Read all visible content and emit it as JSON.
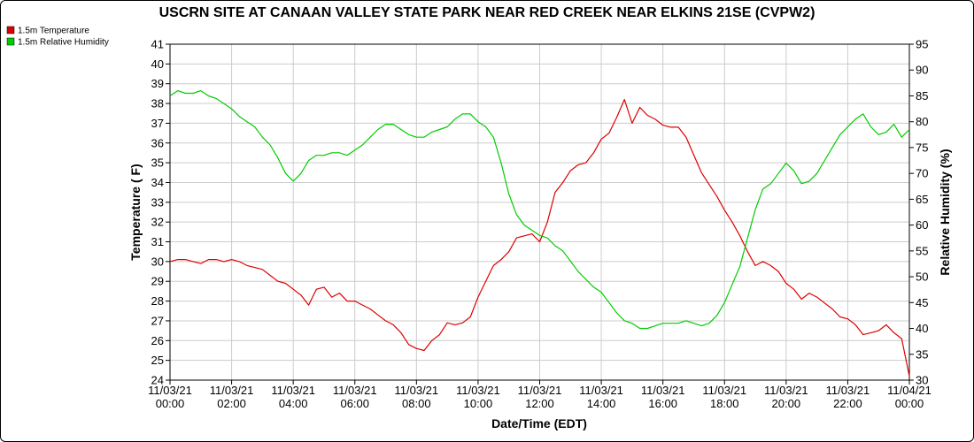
{
  "chart_data": {
    "type": "line",
    "title": "USCRN SITE AT CANAAN VALLEY STATE PARK NEAR RED CREEK NEAR ELKINS 21SE (CVPW2)",
    "xlabel": "Date/Time (EDT)",
    "ylabel_left": "Temperature ( F)",
    "ylabel_right": "Relative Humidity (%)",
    "ylim_left": [
      24,
      41
    ],
    "ylim_right": [
      30,
      95
    ],
    "xlim_hours": [
      0,
      24
    ],
    "grid": true,
    "legend_position": "top-left",
    "x_ticks": [
      {
        "hour": 0,
        "date": "11/03/21",
        "time": "00:00"
      },
      {
        "hour": 2,
        "date": "11/03/21",
        "time": "02:00"
      },
      {
        "hour": 4,
        "date": "11/03/21",
        "time": "04:00"
      },
      {
        "hour": 6,
        "date": "11/03/21",
        "time": "06:00"
      },
      {
        "hour": 8,
        "date": "11/03/21",
        "time": "08:00"
      },
      {
        "hour": 10,
        "date": "11/03/21",
        "time": "10:00"
      },
      {
        "hour": 12,
        "date": "11/03/21",
        "time": "12:00"
      },
      {
        "hour": 14,
        "date": "11/03/21",
        "time": "14:00"
      },
      {
        "hour": 16,
        "date": "11/03/21",
        "time": "16:00"
      },
      {
        "hour": 18,
        "date": "11/03/21",
        "time": "18:00"
      },
      {
        "hour": 20,
        "date": "11/03/21",
        "time": "20:00"
      },
      {
        "hour": 22,
        "date": "11/03/21",
        "time": "22:00"
      },
      {
        "hour": 24,
        "date": "11/04/21",
        "time": "00:00"
      }
    ],
    "y_ticks_left": [
      24,
      25,
      26,
      27,
      28,
      29,
      30,
      31,
      32,
      33,
      34,
      35,
      36,
      37,
      38,
      39,
      40,
      41
    ],
    "y_ticks_right": [
      30,
      35,
      40,
      45,
      50,
      55,
      60,
      65,
      70,
      75,
      80,
      85,
      90,
      95
    ],
    "series": [
      {
        "name": "1.5m Temperature",
        "axis": "left",
        "color": "#dd0000",
        "points": [
          [
            0,
            30.0
          ],
          [
            0.25,
            30.1
          ],
          [
            0.5,
            30.1
          ],
          [
            0.75,
            30.0
          ],
          [
            1,
            29.9
          ],
          [
            1.25,
            30.1
          ],
          [
            1.5,
            30.1
          ],
          [
            1.75,
            30.0
          ],
          [
            2,
            30.1
          ],
          [
            2.25,
            30.0
          ],
          [
            2.5,
            29.8
          ],
          [
            2.75,
            29.7
          ],
          [
            3,
            29.6
          ],
          [
            3.25,
            29.3
          ],
          [
            3.5,
            29.0
          ],
          [
            3.75,
            28.9
          ],
          [
            4,
            28.6
          ],
          [
            4.25,
            28.3
          ],
          [
            4.5,
            27.8
          ],
          [
            4.75,
            28.6
          ],
          [
            5,
            28.7
          ],
          [
            5.25,
            28.2
          ],
          [
            5.5,
            28.4
          ],
          [
            5.75,
            28.0
          ],
          [
            6,
            28.0
          ],
          [
            6.25,
            27.8
          ],
          [
            6.5,
            27.6
          ],
          [
            6.75,
            27.3
          ],
          [
            7,
            27.0
          ],
          [
            7.25,
            26.8
          ],
          [
            7.5,
            26.4
          ],
          [
            7.75,
            25.8
          ],
          [
            8,
            25.6
          ],
          [
            8.25,
            25.5
          ],
          [
            8.5,
            26.0
          ],
          [
            8.75,
            26.3
          ],
          [
            9,
            26.9
          ],
          [
            9.25,
            26.8
          ],
          [
            9.5,
            26.9
          ],
          [
            9.75,
            27.2
          ],
          [
            10,
            28.2
          ],
          [
            10.25,
            29.0
          ],
          [
            10.5,
            29.8
          ],
          [
            10.75,
            30.1
          ],
          [
            11,
            30.5
          ],
          [
            11.25,
            31.2
          ],
          [
            11.5,
            31.3
          ],
          [
            11.75,
            31.4
          ],
          [
            12,
            31.0
          ],
          [
            12.25,
            32.0
          ],
          [
            12.5,
            33.5
          ],
          [
            12.75,
            34.0
          ],
          [
            13,
            34.6
          ],
          [
            13.25,
            34.9
          ],
          [
            13.5,
            35.0
          ],
          [
            13.75,
            35.5
          ],
          [
            14,
            36.2
          ],
          [
            14.25,
            36.5
          ],
          [
            14.5,
            37.3
          ],
          [
            14.75,
            38.2
          ],
          [
            15,
            37.0
          ],
          [
            15.25,
            37.8
          ],
          [
            15.5,
            37.4
          ],
          [
            15.75,
            37.2
          ],
          [
            16,
            36.9
          ],
          [
            16.25,
            36.8
          ],
          [
            16.5,
            36.8
          ],
          [
            16.75,
            36.3
          ],
          [
            17,
            35.4
          ],
          [
            17.25,
            34.5
          ],
          [
            17.5,
            33.9
          ],
          [
            17.75,
            33.3
          ],
          [
            18,
            32.6
          ],
          [
            18.25,
            32.0
          ],
          [
            18.5,
            31.3
          ],
          [
            18.75,
            30.5
          ],
          [
            19,
            29.8
          ],
          [
            19.25,
            30.0
          ],
          [
            19.5,
            29.8
          ],
          [
            19.75,
            29.5
          ],
          [
            20,
            28.9
          ],
          [
            20.25,
            28.6
          ],
          [
            20.5,
            28.1
          ],
          [
            20.75,
            28.4
          ],
          [
            21,
            28.2
          ],
          [
            21.25,
            27.9
          ],
          [
            21.5,
            27.6
          ],
          [
            21.75,
            27.2
          ],
          [
            22,
            27.1
          ],
          [
            22.25,
            26.8
          ],
          [
            22.5,
            26.3
          ],
          [
            22.75,
            26.4
          ],
          [
            23,
            26.5
          ],
          [
            23.25,
            26.8
          ],
          [
            23.5,
            26.4
          ],
          [
            23.75,
            26.1
          ],
          [
            24,
            24.2
          ]
        ]
      },
      {
        "name": "1.5m Relative Humidity",
        "axis": "right",
        "color": "#00cc00",
        "points": [
          [
            0,
            85.0
          ],
          [
            0.25,
            86.0
          ],
          [
            0.5,
            85.5
          ],
          [
            0.75,
            85.5
          ],
          [
            1,
            86.0
          ],
          [
            1.25,
            85.0
          ],
          [
            1.5,
            84.5
          ],
          [
            1.75,
            83.5
          ],
          [
            2,
            82.5
          ],
          [
            2.25,
            81.0
          ],
          [
            2.5,
            80.0
          ],
          [
            2.75,
            79.0
          ],
          [
            3,
            77.0
          ],
          [
            3.25,
            75.5
          ],
          [
            3.5,
            73.0
          ],
          [
            3.75,
            70.0
          ],
          [
            4,
            68.5
          ],
          [
            4.25,
            70.0
          ],
          [
            4.5,
            72.5
          ],
          [
            4.75,
            73.5
          ],
          [
            5,
            73.5
          ],
          [
            5.25,
            74.0
          ],
          [
            5.5,
            74.0
          ],
          [
            5.75,
            73.5
          ],
          [
            6,
            74.5
          ],
          [
            6.25,
            75.5
          ],
          [
            6.5,
            77.0
          ],
          [
            6.75,
            78.5
          ],
          [
            7,
            79.5
          ],
          [
            7.25,
            79.5
          ],
          [
            7.5,
            78.5
          ],
          [
            7.75,
            77.5
          ],
          [
            8,
            77.0
          ],
          [
            8.25,
            77.0
          ],
          [
            8.5,
            78.0
          ],
          [
            8.75,
            78.5
          ],
          [
            9,
            79.0
          ],
          [
            9.25,
            80.5
          ],
          [
            9.5,
            81.5
          ],
          [
            9.75,
            81.5
          ],
          [
            10,
            80.0
          ],
          [
            10.25,
            79.0
          ],
          [
            10.5,
            77.0
          ],
          [
            10.75,
            72.0
          ],
          [
            11,
            66.0
          ],
          [
            11.25,
            62.0
          ],
          [
            11.5,
            60.0
          ],
          [
            11.75,
            59.0
          ],
          [
            12,
            58.0
          ],
          [
            12.25,
            57.5
          ],
          [
            12.5,
            56.0
          ],
          [
            12.75,
            55.0
          ],
          [
            13,
            53.0
          ],
          [
            13.25,
            51.0
          ],
          [
            13.5,
            49.5
          ],
          [
            13.75,
            48.0
          ],
          [
            14,
            47.0
          ],
          [
            14.25,
            45.0
          ],
          [
            14.5,
            43.0
          ],
          [
            14.75,
            41.5
          ],
          [
            15,
            41.0
          ],
          [
            15.25,
            40.0
          ],
          [
            15.5,
            40.0
          ],
          [
            15.75,
            40.5
          ],
          [
            16,
            41.0
          ],
          [
            16.25,
            41.0
          ],
          [
            16.5,
            41.0
          ],
          [
            16.75,
            41.5
          ],
          [
            17,
            41.0
          ],
          [
            17.25,
            40.5
          ],
          [
            17.5,
            41.0
          ],
          [
            17.75,
            42.5
          ],
          [
            18,
            45.0
          ],
          [
            18.25,
            48.5
          ],
          [
            18.5,
            52.0
          ],
          [
            18.75,
            57.5
          ],
          [
            19,
            63.0
          ],
          [
            19.25,
            67.0
          ],
          [
            19.5,
            68.0
          ],
          [
            19.75,
            70.0
          ],
          [
            20,
            72.0
          ],
          [
            20.25,
            70.5
          ],
          [
            20.5,
            68.0
          ],
          [
            20.75,
            68.5
          ],
          [
            21,
            70.0
          ],
          [
            21.25,
            72.5
          ],
          [
            21.5,
            75.0
          ],
          [
            21.75,
            77.5
          ],
          [
            22,
            79.0
          ],
          [
            22.25,
            80.5
          ],
          [
            22.5,
            81.5
          ],
          [
            22.75,
            79.0
          ],
          [
            23,
            77.5
          ],
          [
            23.25,
            78.0
          ],
          [
            23.5,
            79.5
          ],
          [
            23.75,
            77.0
          ],
          [
            24,
            78.5
          ]
        ]
      }
    ]
  }
}
